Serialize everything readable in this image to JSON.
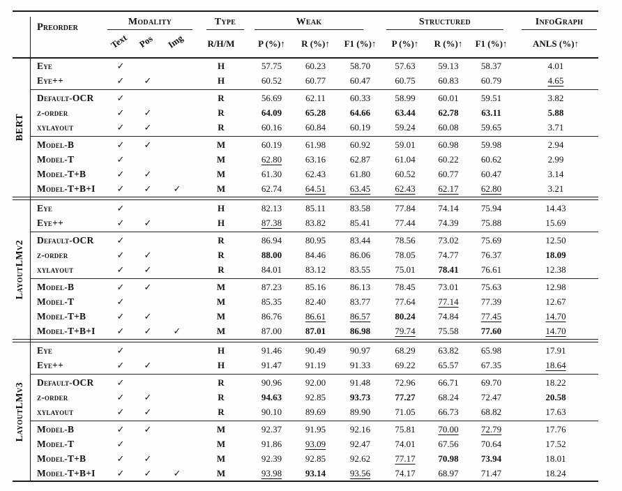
{
  "header": {
    "preorder": "Preorder",
    "modality": "Modality",
    "type": "Type",
    "weak": "Weak",
    "structured": "Structured",
    "infograph": "InfoGraph",
    "modality_cols": [
      "Text",
      "Pos",
      "Img"
    ],
    "type_sub": "R/H/M",
    "metrics": [
      "P (%)↑",
      "R (%)↑",
      "F1 (%)↑",
      "P (%)↑",
      "R (%)↑",
      "F1 (%)↑"
    ],
    "anls": "ANLS (%)↑"
  },
  "checkmark": "✓",
  "groups": [
    {
      "name": "BERT",
      "blocks": [
        {
          "rows": [
            {
              "label": "Eye",
              "modality": [
                1,
                0,
                0
              ],
              "type": "H",
              "values": [
                "57.75",
                "60.23",
                "58.70",
                "57.63",
                "59.13",
                "58.37",
                "4.01"
              ],
              "styles": [
                "",
                "",
                "",
                "",
                "",
                "",
                ""
              ]
            },
            {
              "label": "Eye++",
              "modality": [
                1,
                1,
                0
              ],
              "type": "H",
              "values": [
                "60.52",
                "60.77",
                "60.47",
                "60.75",
                "60.83",
                "60.79",
                "4.65"
              ],
              "styles": [
                "",
                "",
                "",
                "",
                "",
                "",
                "u"
              ]
            }
          ]
        },
        {
          "rows": [
            {
              "label": "Default-OCR",
              "modality": [
                1,
                0,
                0
              ],
              "type": "R",
              "values": [
                "56.69",
                "62.11",
                "60.33",
                "58.99",
                "60.01",
                "59.51",
                "3.82"
              ],
              "styles": [
                "",
                "",
                "",
                "",
                "",
                "",
                ""
              ]
            },
            {
              "label": "z-order",
              "modality": [
                1,
                1,
                0
              ],
              "type": "R",
              "values": [
                "64.09",
                "65.28",
                "64.66",
                "63.44",
                "62.78",
                "63.11",
                "5.88"
              ],
              "styles": [
                "b",
                "b",
                "b",
                "b",
                "b",
                "b",
                "b"
              ]
            },
            {
              "label": "xylayout",
              "modality": [
                1,
                1,
                0
              ],
              "type": "R",
              "values": [
                "60.16",
                "60.84",
                "60.19",
                "59.24",
                "60.08",
                "59.65",
                "3.71"
              ],
              "styles": [
                "",
                "",
                "",
                "",
                "",
                "",
                ""
              ]
            }
          ]
        },
        {
          "rows": [
            {
              "label": "Model-B",
              "modality": [
                1,
                1,
                0
              ],
              "type": "M",
              "values": [
                "60.19",
                "61.98",
                "60.92",
                "59.01",
                "60.98",
                "59.98",
                "2.94"
              ],
              "styles": [
                "",
                "",
                "",
                "",
                "",
                "",
                ""
              ]
            },
            {
              "label": "Model-T",
              "modality": [
                1,
                0,
                0
              ],
              "type": "M",
              "values": [
                "62.80",
                "63.16",
                "62.87",
                "61.04",
                "60.22",
                "60.62",
                "2.99"
              ],
              "styles": [
                "u",
                "",
                "",
                "",
                "",
                "",
                ""
              ]
            },
            {
              "label": "Model-T+B",
              "modality": [
                1,
                1,
                0
              ],
              "type": "M",
              "values": [
                "61.30",
                "62.43",
                "61.80",
                "60.52",
                "60.77",
                "60.47",
                "3.14"
              ],
              "styles": [
                "",
                "",
                "",
                "",
                "",
                "",
                ""
              ]
            },
            {
              "label": "Model-T+B+I",
              "modality": [
                1,
                1,
                1
              ],
              "type": "M",
              "values": [
                "62.74",
                "64.51",
                "63.45",
                "62.43",
                "62.17",
                "62.80",
                "3.21"
              ],
              "styles": [
                "",
                "u",
                "u",
                "u",
                "u",
                "u",
                ""
              ]
            }
          ]
        }
      ]
    },
    {
      "name": "LayoutLMv2",
      "blocks": [
        {
          "rows": [
            {
              "label": "Eye",
              "modality": [
                1,
                0,
                0
              ],
              "type": "H",
              "values": [
                "82.13",
                "85.11",
                "83.58",
                "77.84",
                "74.14",
                "75.94",
                "14.43"
              ],
              "styles": [
                "",
                "",
                "",
                "",
                "",
                "",
                ""
              ]
            },
            {
              "label": "Eye++",
              "modality": [
                1,
                1,
                0
              ],
              "type": "H",
              "values": [
                "87.38",
                "83.82",
                "85.41",
                "77.44",
                "74.39",
                "75.88",
                "15.69"
              ],
              "styles": [
                "u",
                "",
                "",
                "",
                "",
                "",
                ""
              ]
            }
          ]
        },
        {
          "rows": [
            {
              "label": "Default-OCR",
              "modality": [
                1,
                0,
                0
              ],
              "type": "R",
              "values": [
                "86.94",
                "80.95",
                "83.44",
                "78.56",
                "73.02",
                "75.69",
                "12.50"
              ],
              "styles": [
                "",
                "",
                "",
                "",
                "",
                "",
                ""
              ]
            },
            {
              "label": "z-order",
              "modality": [
                1,
                1,
                0
              ],
              "type": "R",
              "values": [
                "88.00",
                "84.46",
                "86.06",
                "78.05",
                "74.77",
                "76.37",
                "18.09"
              ],
              "styles": [
                "b",
                "",
                "",
                "",
                "",
                "",
                "b"
              ]
            },
            {
              "label": "xylayout",
              "modality": [
                1,
                1,
                0
              ],
              "type": "R",
              "values": [
                "84.01",
                "83.12",
                "83.55",
                "75.01",
                "78.41",
                "76.61",
                "12.38"
              ],
              "styles": [
                "",
                "",
                "",
                "",
                "b",
                "",
                ""
              ]
            }
          ]
        },
        {
          "rows": [
            {
              "label": "Model-B",
              "modality": [
                1,
                1,
                0
              ],
              "type": "M",
              "values": [
                "87.23",
                "85.16",
                "86.13",
                "78.45",
                "73.01",
                "75.63",
                "12.98"
              ],
              "styles": [
                "",
                "",
                "",
                "",
                "",
                "",
                ""
              ]
            },
            {
              "label": "Model-T",
              "modality": [
                1,
                0,
                0
              ],
              "type": "M",
              "values": [
                "85.35",
                "82.40",
                "83.77",
                "77.64",
                "77.14",
                "77.39",
                "12.67"
              ],
              "styles": [
                "",
                "",
                "",
                "",
                "u",
                "",
                ""
              ]
            },
            {
              "label": "Model-T+B",
              "modality": [
                1,
                1,
                0
              ],
              "type": "M",
              "values": [
                "86.76",
                "86.61",
                "86.57",
                "80.24",
                "74.84",
                "77.45",
                "14.70"
              ],
              "styles": [
                "",
                "u",
                "u",
                "b",
                "",
                "u",
                "u"
              ]
            },
            {
              "label": "Model-T+B+I",
              "modality": [
                1,
                1,
                1
              ],
              "type": "M",
              "values": [
                "87.00",
                "87.01",
                "86.98",
                "79.74",
                "75.58",
                "77.60",
                "14.70"
              ],
              "styles": [
                "",
                "b",
                "b",
                "u",
                "",
                "b",
                "u"
              ]
            }
          ]
        }
      ]
    },
    {
      "name": "LayoutLMv3",
      "blocks": [
        {
          "rows": [
            {
              "label": "Eye",
              "modality": [
                1,
                0,
                0
              ],
              "type": "H",
              "values": [
                "91.46",
                "90.49",
                "90.97",
                "68.29",
                "63.82",
                "65.98",
                "17.91"
              ],
              "styles": [
                "",
                "",
                "",
                "",
                "",
                "",
                ""
              ]
            },
            {
              "label": "Eye++",
              "modality": [
                1,
                1,
                0
              ],
              "type": "H",
              "values": [
                "91.47",
                "91.19",
                "91.33",
                "69.22",
                "65.57",
                "67.35",
                "18.64"
              ],
              "styles": [
                "",
                "",
                "",
                "",
                "",
                "",
                "u"
              ]
            }
          ]
        },
        {
          "rows": [
            {
              "label": "Default-OCR",
              "modality": [
                1,
                0,
                0
              ],
              "type": "R",
              "values": [
                "90.96",
                "92.00",
                "91.48",
                "72.96",
                "66.71",
                "69.70",
                "18.22"
              ],
              "styles": [
                "",
                "",
                "",
                "",
                "",
                "",
                ""
              ]
            },
            {
              "label": "z-order",
              "modality": [
                1,
                1,
                0
              ],
              "type": "R",
              "values": [
                "94.63",
                "92.85",
                "93.73",
                "77.27",
                "68.24",
                "72.47",
                "20.58"
              ],
              "styles": [
                "b",
                "",
                "b",
                "b",
                "",
                "",
                "b"
              ]
            },
            {
              "label": "xylayout",
              "modality": [
                1,
                1,
                0
              ],
              "type": "R",
              "values": [
                "90.10",
                "89.69",
                "89.90",
                "71.05",
                "66.73",
                "68.82",
                "17.63"
              ],
              "styles": [
                "",
                "",
                "",
                "",
                "",
                "",
                ""
              ]
            }
          ]
        },
        {
          "rows": [
            {
              "label": "Model-B",
              "modality": [
                1,
                1,
                0
              ],
              "type": "M",
              "values": [
                "92.37",
                "91.95",
                "92.16",
                "75.81",
                "70.00",
                "72.79",
                "17.76"
              ],
              "styles": [
                "",
                "",
                "",
                "",
                "u",
                "u",
                ""
              ]
            },
            {
              "label": "Model-T",
              "modality": [
                1,
                0,
                0
              ],
              "type": "M",
              "values": [
                "91.86",
                "93.09",
                "92.47",
                "74.01",
                "67.56",
                "70.64",
                "17.52"
              ],
              "styles": [
                "",
                "u",
                "",
                "",
                "",
                "",
                ""
              ]
            },
            {
              "label": "Model-T+B",
              "modality": [
                1,
                1,
                0
              ],
              "type": "M",
              "values": [
                "92.39",
                "92.85",
                "92.62",
                "77.17",
                "70.98",
                "73.94",
                "18.01"
              ],
              "styles": [
                "",
                "",
                "",
                "u",
                "b",
                "b",
                ""
              ]
            },
            {
              "label": "Model-T+B+I",
              "modality": [
                1,
                1,
                1
              ],
              "type": "M",
              "values": [
                "93.98",
                "93.14",
                "93.56",
                "74.17",
                "68.97",
                "71.47",
                "18.24"
              ],
              "styles": [
                "u",
                "b",
                "u",
                "",
                "",
                "",
                ""
              ]
            }
          ]
        }
      ]
    }
  ]
}
